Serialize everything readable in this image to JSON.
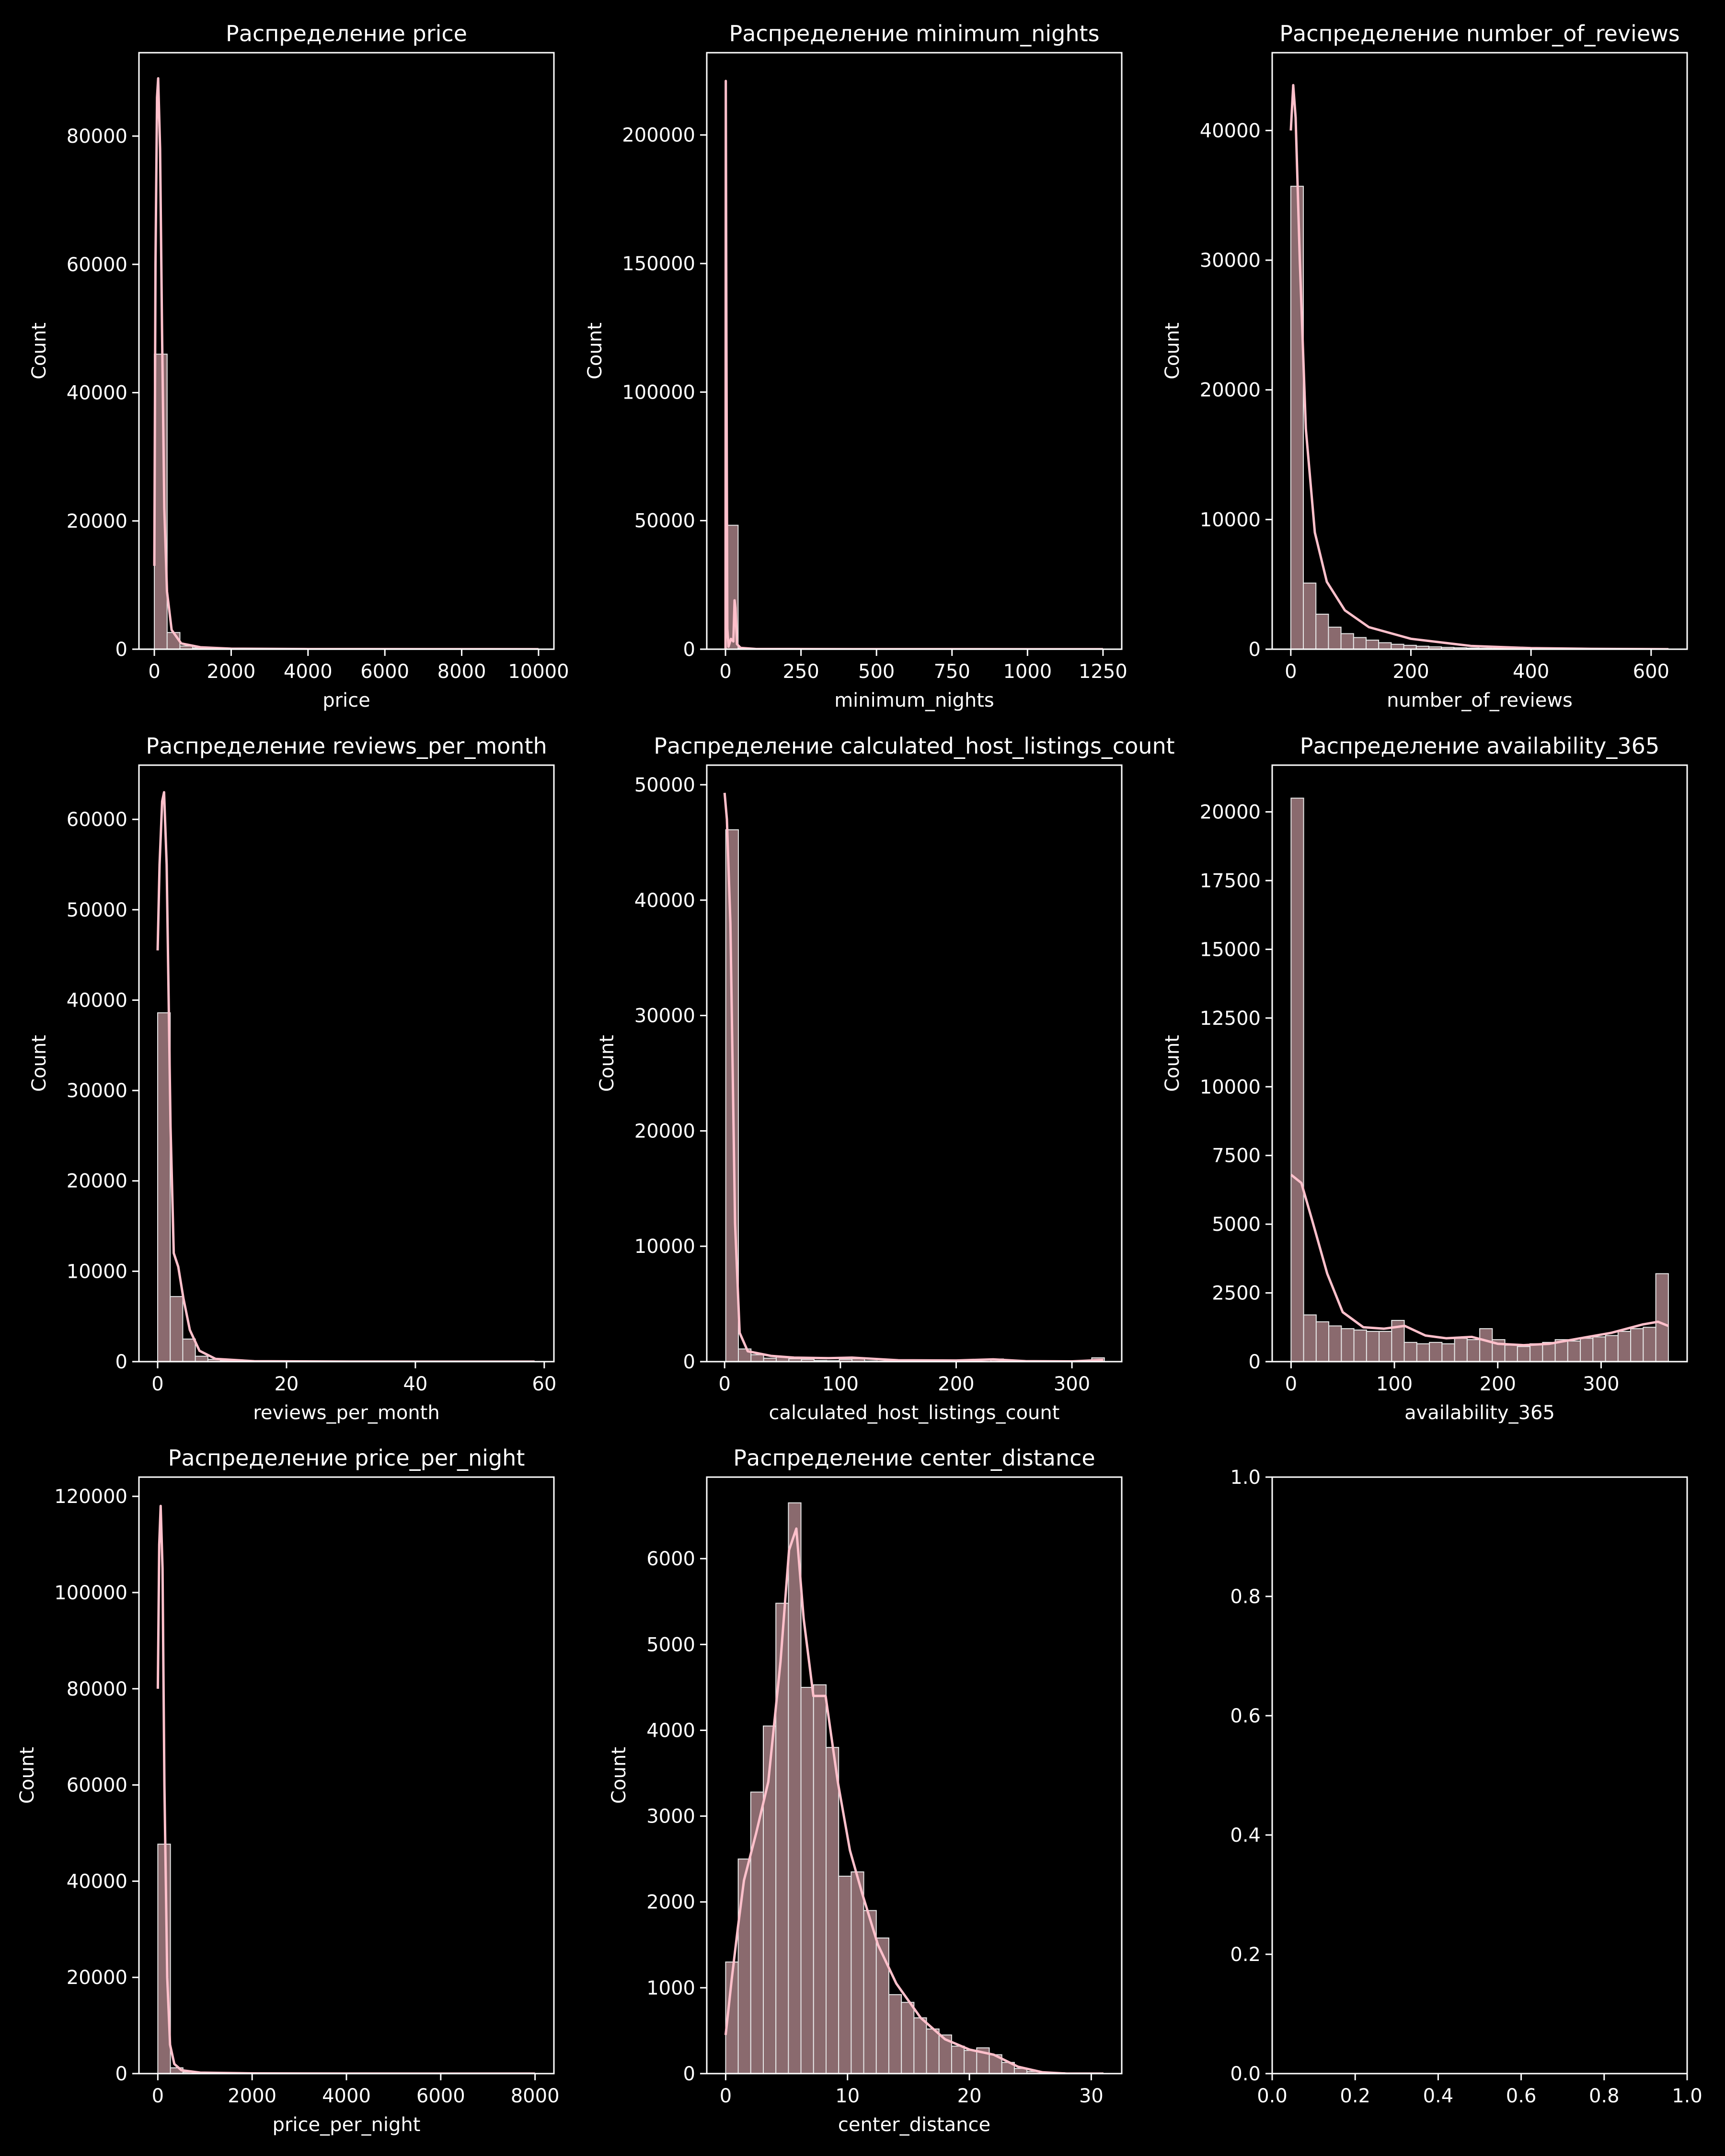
{
  "figure": {
    "background": "#000000",
    "bar_fill": "#8a6a6e",
    "bar_edge": "#e6e6e6",
    "kde_color": "#ffc0cb",
    "axis_color": "#ffffff"
  },
  "chart_data": [
    {
      "type": "bar",
      "title": "Распределение price",
      "xlabel": "price",
      "ylabel": "Count",
      "xlim": [
        -400,
        10400
      ],
      "ylim": [
        0,
        93000
      ],
      "xticks": [
        0,
        2000,
        4000,
        6000,
        8000,
        10000
      ],
      "yticks": [
        0,
        20000,
        40000,
        60000,
        80000
      ],
      "bin_start": 0,
      "bin_width": 333,
      "values": [
        46000,
        2600,
        500,
        200,
        100,
        60,
        40,
        30,
        20,
        15,
        10,
        10,
        8,
        6,
        5,
        5,
        4,
        3,
        3,
        3,
        2,
        2,
        2,
        2,
        1,
        1,
        1,
        1,
        1,
        10
      ],
      "kde": [
        [
          0,
          13000
        ],
        [
          30,
          60000
        ],
        [
          70,
          86000
        ],
        [
          100,
          89000
        ],
        [
          150,
          78000
        ],
        [
          200,
          50000
        ],
        [
          260,
          22000
        ],
        [
          330,
          9000
        ],
        [
          450,
          3000
        ],
        [
          700,
          900
        ],
        [
          1200,
          300
        ],
        [
          2000,
          80
        ],
        [
          4000,
          20
        ],
        [
          10000,
          0
        ]
      ]
    },
    {
      "type": "bar",
      "title": "Распределение minimum_nights",
      "xlabel": "minimum_nights",
      "ylabel": "Count",
      "xlim": [
        -62,
        1312
      ],
      "ylim": [
        0,
        232000
      ],
      "xticks": [
        0,
        250,
        500,
        750,
        1000,
        1250
      ],
      "yticks": [
        0,
        50000,
        100000,
        150000,
        200000
      ],
      "bin_start": 0,
      "bin_width": 41.7,
      "values": [
        48200,
        350,
        150,
        60,
        30,
        20,
        10,
        8,
        40,
        5,
        4,
        3,
        3,
        2,
        2,
        2,
        1,
        1,
        1,
        1,
        1,
        1,
        1,
        1,
        1,
        1,
        1,
        1,
        1,
        6
      ],
      "kde": [
        [
          0,
          0
        ],
        [
          1,
          221000
        ],
        [
          3,
          120000
        ],
        [
          6,
          8000
        ],
        [
          10,
          1000
        ],
        [
          18,
          4000
        ],
        [
          26,
          3000
        ],
        [
          30,
          19000
        ],
        [
          33,
          16000
        ],
        [
          38,
          2000
        ],
        [
          50,
          500
        ],
        [
          100,
          100
        ],
        [
          300,
          30
        ],
        [
          1250,
          0
        ]
      ]
    },
    {
      "type": "bar",
      "title": "Распределение number_of_reviews",
      "xlabel": "number_of_reviews",
      "ylabel": "Count",
      "xlim": [
        -31,
        660
      ],
      "ylim": [
        0,
        46000
      ],
      "xticks": [
        0,
        200,
        400,
        600
      ],
      "yticks": [
        0,
        10000,
        20000,
        30000,
        40000
      ],
      "bin_start": 0,
      "bin_width": 20.9,
      "values": [
        35700,
        5100,
        2700,
        1700,
        1200,
        900,
        700,
        500,
        380,
        300,
        230,
        180,
        140,
        110,
        90,
        70,
        55,
        45,
        35,
        28,
        22,
        18,
        14,
        11,
        9,
        7,
        5,
        4,
        3,
        2
      ],
      "kde": [
        [
          0,
          40000
        ],
        [
          4,
          43500
        ],
        [
          8,
          41000
        ],
        [
          15,
          30000
        ],
        [
          25,
          17000
        ],
        [
          40,
          9000
        ],
        [
          60,
          5200
        ],
        [
          90,
          3000
        ],
        [
          130,
          1700
        ],
        [
          200,
          800
        ],
        [
          300,
          250
        ],
        [
          400,
          80
        ],
        [
          500,
          30
        ],
        [
          629,
          0
        ]
      ]
    },
    {
      "type": "bar",
      "title": "Распределение reviews_per_month",
      "xlabel": "reviews_per_month",
      "ylabel": "Count",
      "xlim": [
        -2.9,
        61.5
      ],
      "ylim": [
        0,
        66000
      ],
      "xticks": [
        0,
        20,
        40,
        60
      ],
      "yticks": [
        0,
        10000,
        20000,
        30000,
        40000,
        50000,
        60000
      ],
      "bin_start": 0,
      "bin_width": 1.95,
      "values": [
        38600,
        7200,
        2500,
        600,
        250,
        120,
        60,
        30,
        20,
        15,
        10,
        8,
        6,
        5,
        4,
        3,
        3,
        2,
        2,
        2,
        1,
        1,
        1,
        1,
        1,
        1,
        1,
        1,
        1,
        1
      ],
      "kde": [
        [
          0,
          45500
        ],
        [
          0.3,
          55000
        ],
        [
          0.7,
          62000
        ],
        [
          1.0,
          63000
        ],
        [
          1.4,
          55000
        ],
        [
          2.0,
          26000
        ],
        [
          2.5,
          12000
        ],
        [
          3.2,
          10500
        ],
        [
          4.0,
          7000
        ],
        [
          5.0,
          3500
        ],
        [
          6.5,
          1200
        ],
        [
          9,
          300
        ],
        [
          15,
          50
        ],
        [
          30,
          5
        ],
        [
          58.5,
          0
        ]
      ]
    },
    {
      "type": "bar",
      "title": "Распределение calculated_host_listings_count",
      "xlabel": "calculated_host_listings_count",
      "ylabel": "Count",
      "xlim": [
        -15.4,
        343
      ],
      "ylim": [
        0,
        51700
      ],
      "xticks": [
        0,
        100,
        200,
        300
      ],
      "yticks": [
        0,
        10000,
        20000,
        30000,
        40000,
        50000
      ],
      "bin_start": 1,
      "bin_width": 10.9,
      "values": [
        46100,
        1100,
        600,
        300,
        400,
        250,
        200,
        100,
        80,
        200,
        250,
        60,
        40,
        30,
        20,
        15,
        10,
        10,
        8,
        6,
        5,
        230,
        5,
        4,
        3,
        2,
        2,
        2,
        2,
        330
      ],
      "kde": [
        [
          0,
          49300
        ],
        [
          2,
          47000
        ],
        [
          5,
          38000
        ],
        [
          9,
          12000
        ],
        [
          13,
          2500
        ],
        [
          20,
          900
        ],
        [
          40,
          500
        ],
        [
          60,
          350
        ],
        [
          90,
          300
        ],
        [
          110,
          350
        ],
        [
          150,
          120
        ],
        [
          200,
          100
        ],
        [
          232,
          200
        ],
        [
          260,
          40
        ],
        [
          300,
          20
        ],
        [
          327,
          150
        ]
      ]
    },
    {
      "type": "bar",
      "title": "Распределение availability_365",
      "xlabel": "availability_365",
      "ylabel": "Count",
      "xlim": [
        -18.25,
        383.25
      ],
      "ylim": [
        0,
        21700
      ],
      "xticks": [
        0,
        100,
        200,
        300
      ],
      "yticks": [
        0,
        2500,
        5000,
        7500,
        10000,
        12500,
        15000,
        17500,
        20000
      ],
      "bin_start": 0,
      "bin_width": 12.17,
      "values": [
        20500,
        1700,
        1450,
        1300,
        1200,
        1150,
        1100,
        1100,
        1500,
        700,
        650,
        700,
        650,
        850,
        800,
        1200,
        800,
        600,
        550,
        650,
        700,
        800,
        750,
        850,
        900,
        950,
        1100,
        1200,
        1250,
        3200
      ],
      "kde": [
        [
          0,
          6800
        ],
        [
          10,
          6500
        ],
        [
          20,
          5200
        ],
        [
          35,
          3200
        ],
        [
          50,
          1800
        ],
        [
          70,
          1250
        ],
        [
          90,
          1200
        ],
        [
          110,
          1300
        ],
        [
          130,
          950
        ],
        [
          150,
          850
        ],
        [
          175,
          900
        ],
        [
          200,
          650
        ],
        [
          225,
          600
        ],
        [
          250,
          650
        ],
        [
          280,
          850
        ],
        [
          310,
          1050
        ],
        [
          340,
          1350
        ],
        [
          355,
          1450
        ],
        [
          365,
          1300
        ]
      ]
    },
    {
      "type": "bar",
      "title": "Распределение price_per_night",
      "xlabel": "price_per_night",
      "ylabel": "Count",
      "xlim": [
        -400,
        8400
      ],
      "ylim": [
        0,
        124000
      ],
      "xticks": [
        0,
        2000,
        4000,
        6000,
        8000
      ],
      "yticks": [
        0,
        20000,
        40000,
        60000,
        80000,
        100000,
        120000
      ],
      "bin_start": 0,
      "bin_width": 266.7,
      "values": [
        47700,
        1200,
        300,
        150,
        80,
        50,
        30,
        20,
        15,
        10,
        8,
        6,
        5,
        4,
        3,
        3,
        2,
        2,
        2,
        2,
        1,
        1,
        1,
        1,
        1,
        1,
        1,
        1,
        1,
        1
      ],
      "kde": [
        [
          0,
          80000
        ],
        [
          30,
          110000
        ],
        [
          60,
          118000
        ],
        [
          100,
          105000
        ],
        [
          140,
          60000
        ],
        [
          200,
          20000
        ],
        [
          260,
          6000
        ],
        [
          350,
          2000
        ],
        [
          500,
          700
        ],
        [
          900,
          200
        ],
        [
          2000,
          50
        ],
        [
          4000,
          10
        ],
        [
          8000,
          0
        ]
      ]
    },
    {
      "type": "bar",
      "title": "Распределение center_distance",
      "xlabel": "center_distance",
      "ylabel": "Count",
      "xlim": [
        -1.55,
        32.5
      ],
      "ylim": [
        0,
        6950
      ],
      "xticks": [
        0,
        10,
        20,
        30
      ],
      "yticks": [
        0,
        1000,
        2000,
        3000,
        4000,
        5000,
        6000
      ],
      "bin_start": 0,
      "bin_width": 1.03,
      "values": [
        1300,
        2500,
        3280,
        4050,
        5480,
        6650,
        4500,
        4530,
        3800,
        2300,
        2350,
        1900,
        1580,
        920,
        830,
        650,
        520,
        450,
        320,
        270,
        300,
        220,
        130,
        60,
        25,
        15,
        10,
        5,
        3,
        2
      ],
      "kde": [
        [
          0,
          450
        ],
        [
          0.5,
          1100
        ],
        [
          1,
          1700
        ],
        [
          1.5,
          2250
        ],
        [
          2.5,
          2800
        ],
        [
          3.5,
          3400
        ],
        [
          4.5,
          4800
        ],
        [
          5.2,
          6100
        ],
        [
          5.8,
          6350
        ],
        [
          6.4,
          5300
        ],
        [
          7.2,
          4400
        ],
        [
          8.2,
          4400
        ],
        [
          9.2,
          3400
        ],
        [
          10.2,
          2600
        ],
        [
          11.2,
          2100
        ],
        [
          12.5,
          1500
        ],
        [
          14,
          1050
        ],
        [
          16,
          650
        ],
        [
          18,
          400
        ],
        [
          20,
          280
        ],
        [
          22,
          220
        ],
        [
          24,
          80
        ],
        [
          26,
          15
        ],
        [
          28,
          0
        ],
        [
          31,
          0
        ]
      ]
    },
    {
      "type": "scatter",
      "title": "",
      "xlabel": "",
      "ylabel": "",
      "xlim": [
        0,
        1
      ],
      "ylim": [
        0,
        1
      ],
      "xticks": [
        0.0,
        0.2,
        0.4,
        0.6,
        0.8,
        1.0
      ],
      "yticks": [
        0.0,
        0.2,
        0.4,
        0.6,
        0.8,
        1.0
      ],
      "empty": true
    }
  ]
}
